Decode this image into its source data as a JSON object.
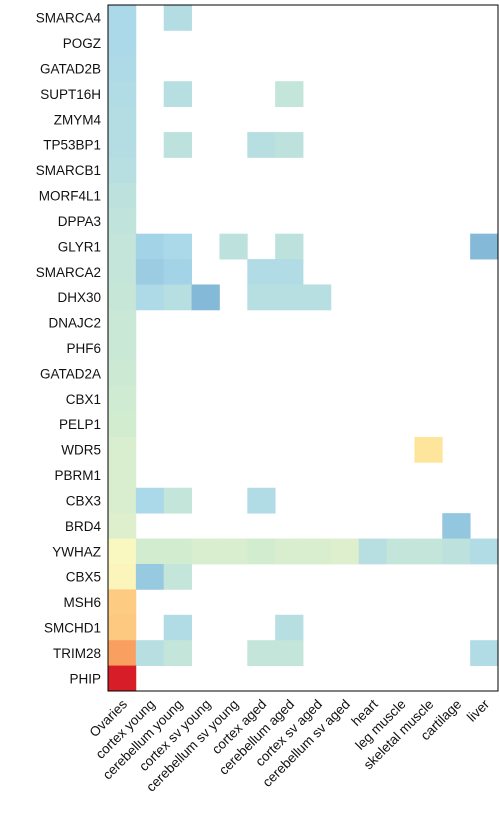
{
  "chart_data": {
    "type": "heatmap",
    "title": "",
    "xlabel": "",
    "ylabel": "",
    "rows": [
      "SMARCA4",
      "POGZ",
      "GATAD2B",
      "SUPT16H",
      "ZMYM4",
      "TP53BP1",
      "SMARCB1",
      "MORF4L1",
      "DPPA3",
      "GLYR1",
      "SMARCA2",
      "DHX30",
      "DNAJC2",
      "PHF6",
      "GATAD2A",
      "CBX1",
      "PELP1",
      "WDR5",
      "PBRM1",
      "CBX3",
      "BRD4",
      "YWHAZ",
      "CBX5",
      "MSH6",
      "SMCHD1",
      "TRIM28",
      "PHIP"
    ],
    "columns": [
      "Ovaries",
      "cortex young",
      "cerebellum young",
      "cortex sv young",
      "cerebellum sv young",
      "cortex aged",
      "cerebellum aged",
      "cortex sv aged",
      "cerebellum sv aged",
      "heart",
      "leg muscle",
      "skeletal muscle",
      "cartilage",
      "liver"
    ],
    "values": [
      [
        0.32,
        null,
        0.35,
        null,
        null,
        null,
        null,
        null,
        null,
        null,
        null,
        null,
        null,
        null
      ],
      [
        0.32,
        null,
        null,
        null,
        null,
        null,
        null,
        null,
        null,
        null,
        null,
        null,
        null,
        null
      ],
      [
        0.33,
        null,
        null,
        null,
        null,
        null,
        null,
        null,
        null,
        null,
        null,
        null,
        null,
        null
      ],
      [
        0.34,
        null,
        0.36,
        null,
        null,
        null,
        0.4,
        null,
        null,
        null,
        null,
        null,
        null,
        null
      ],
      [
        0.35,
        null,
        null,
        null,
        null,
        null,
        null,
        null,
        null,
        null,
        null,
        null,
        null,
        null
      ],
      [
        0.35,
        null,
        0.38,
        null,
        null,
        0.36,
        0.38,
        null,
        null,
        null,
        null,
        null,
        null,
        null
      ],
      [
        0.36,
        null,
        null,
        null,
        null,
        null,
        null,
        null,
        null,
        null,
        null,
        null,
        null,
        null
      ],
      [
        0.38,
        null,
        null,
        null,
        null,
        null,
        null,
        null,
        null,
        null,
        null,
        null,
        null,
        null
      ],
      [
        0.39,
        null,
        null,
        null,
        null,
        null,
        null,
        null,
        null,
        null,
        null,
        null,
        null,
        null
      ],
      [
        0.4,
        0.3,
        0.32,
        null,
        0.38,
        null,
        0.38,
        null,
        null,
        null,
        null,
        null,
        null,
        0.22
      ],
      [
        0.4,
        0.28,
        0.3,
        null,
        null,
        0.34,
        0.34,
        null,
        null,
        null,
        null,
        null,
        null,
        null
      ],
      [
        0.41,
        0.33,
        0.36,
        0.22,
        null,
        0.36,
        0.36,
        0.36,
        null,
        null,
        null,
        null,
        null,
        null
      ],
      [
        0.42,
        null,
        null,
        null,
        null,
        null,
        null,
        null,
        null,
        null,
        null,
        null,
        null,
        null
      ],
      [
        0.42,
        null,
        null,
        null,
        null,
        null,
        null,
        null,
        null,
        null,
        null,
        null,
        null,
        null
      ],
      [
        0.43,
        null,
        null,
        null,
        null,
        null,
        null,
        null,
        null,
        null,
        null,
        null,
        null,
        null
      ],
      [
        0.44,
        null,
        null,
        null,
        null,
        null,
        null,
        null,
        null,
        null,
        null,
        null,
        null,
        null
      ],
      [
        0.45,
        null,
        null,
        null,
        null,
        null,
        null,
        null,
        null,
        null,
        null,
        null,
        null,
        null
      ],
      [
        0.46,
        null,
        null,
        null,
        null,
        null,
        null,
        null,
        null,
        null,
        null,
        0.58,
        null,
        null
      ],
      [
        0.46,
        null,
        null,
        null,
        null,
        null,
        null,
        null,
        null,
        null,
        null,
        null,
        null,
        null
      ],
      [
        0.46,
        0.32,
        0.4,
        null,
        null,
        0.34,
        null,
        null,
        null,
        null,
        null,
        null,
        null,
        null
      ],
      [
        0.47,
        null,
        null,
        null,
        null,
        null,
        null,
        null,
        null,
        null,
        null,
        null,
        0.26,
        null
      ],
      [
        0.52,
        0.45,
        0.45,
        0.46,
        0.46,
        0.45,
        0.46,
        0.46,
        0.47,
        0.36,
        0.4,
        0.4,
        0.38,
        0.34
      ],
      [
        0.53,
        0.27,
        0.4,
        null,
        null,
        null,
        null,
        null,
        null,
        null,
        null,
        null,
        null,
        null
      ],
      [
        0.66,
        null,
        null,
        null,
        null,
        null,
        null,
        null,
        null,
        null,
        null,
        null,
        null,
        null
      ],
      [
        0.67,
        null,
        0.34,
        null,
        null,
        null,
        0.36,
        null,
        null,
        null,
        null,
        null,
        null,
        null
      ],
      [
        0.76,
        0.36,
        0.4,
        null,
        null,
        0.4,
        0.4,
        null,
        null,
        null,
        null,
        null,
        null,
        0.34
      ],
      [
        1.0,
        null,
        null,
        null,
        null,
        null,
        null,
        null,
        null,
        null,
        null,
        null,
        null,
        null
      ]
    ],
    "grid": false,
    "legend": "none"
  }
}
